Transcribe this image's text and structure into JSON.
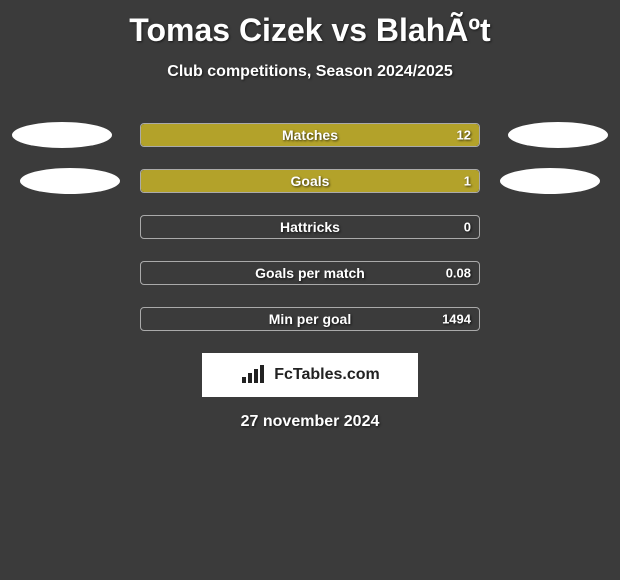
{
  "title": "Tomas Cizek vs BlahÃºt",
  "subtitle": "Club competitions, Season 2024/2025",
  "background_color": "#3b3b3b",
  "ellipse_color": "#ffffff",
  "bar_border_color": "#aaaaaa",
  "stats": [
    {
      "label": "Matches",
      "value": "12",
      "fill_pct": 100,
      "fill_color": "#b3a22a",
      "show_ellipses": true,
      "ellipse_variant": 1
    },
    {
      "label": "Goals",
      "value": "1",
      "fill_pct": 100,
      "fill_color": "#b3a22a",
      "show_ellipses": true,
      "ellipse_variant": 2
    },
    {
      "label": "Hattricks",
      "value": "0",
      "fill_pct": 0,
      "fill_color": "#b3a22a",
      "show_ellipses": false
    },
    {
      "label": "Goals per match",
      "value": "0.08",
      "fill_pct": 0,
      "fill_color": "#b3a22a",
      "show_ellipses": false
    },
    {
      "label": "Min per goal",
      "value": "1494",
      "fill_pct": 0,
      "fill_color": "#b3a22a",
      "show_ellipses": false
    }
  ],
  "footer": {
    "brand": "FcTables.com",
    "date": "27 november 2024",
    "box_bg": "#ffffff",
    "brand_text_color": "#222222"
  }
}
